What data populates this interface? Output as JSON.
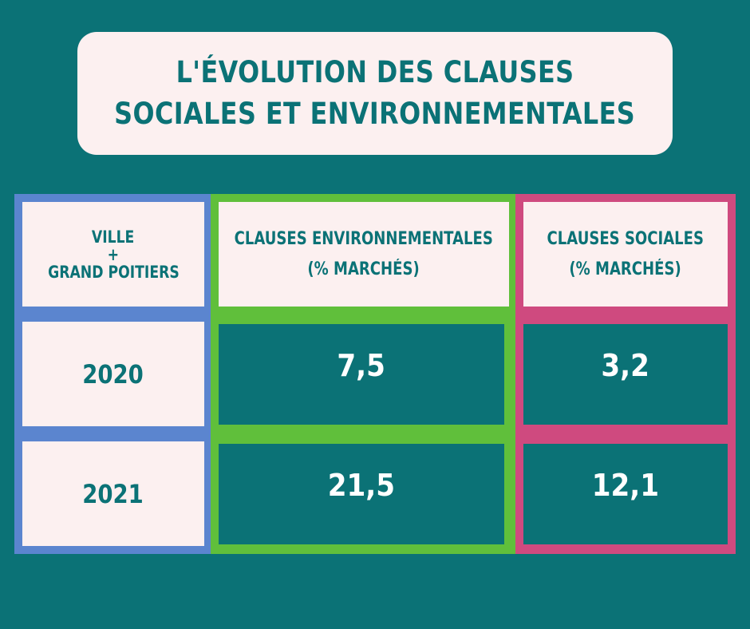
{
  "title": {
    "line1": "L'ÉVOLUTION DES CLAUSES",
    "line2": "SOCIALES ET ENVIRONNEMENTALES"
  },
  "table": {
    "header": {
      "label_line1": "VILLE",
      "label_line2": "+",
      "label_line3": "GRAND POITIERS",
      "env_line1": "CLAUSES ENVIRONNEMENTALES",
      "env_line2": "(% MARCHÉS)",
      "soc_line1": "CLAUSES SOCIALES",
      "soc_line2": "(% MARCHÉS)"
    },
    "rows": [
      {
        "year": "2020",
        "env": "7,5",
        "soc": "3,2"
      },
      {
        "year": "2021",
        "env": "21,5",
        "soc": "12,1"
      }
    ]
  },
  "colors": {
    "background": "#0b7276",
    "card": "#fcf0f0",
    "blue": "#5b85cf",
    "green": "#60bf3b",
    "pink": "#cf4a7f"
  }
}
